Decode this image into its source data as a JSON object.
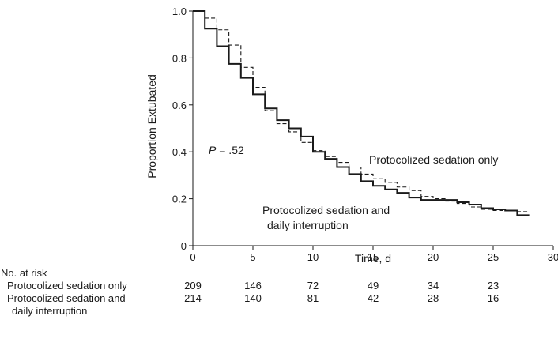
{
  "chart_data": {
    "type": "line",
    "step": true,
    "xlabel": "Time, d",
    "ylabel": "Proportion Extubated",
    "xlim": [
      0,
      30
    ],
    "ylim": [
      0,
      1.0
    ],
    "xticks": [
      "0",
      "5",
      "10",
      "15",
      "20",
      "25",
      "30"
    ],
    "yticks": [
      "0",
      "0.2",
      "0.4",
      "0.6",
      "0.8",
      "1.0"
    ],
    "annotation_p": {
      "italic": "P",
      "text": " = .52"
    },
    "series": [
      {
        "name": "Protocolized sedation only",
        "line_style": "dashed",
        "x": [
          0,
          1,
          2,
          3,
          4,
          5,
          6,
          7,
          8,
          9,
          10,
          11,
          12,
          13,
          14,
          15,
          16,
          17,
          18,
          19,
          20,
          21,
          22,
          23,
          24,
          25,
          26,
          27,
          28
        ],
        "y": [
          1.0,
          0.97,
          0.92,
          0.855,
          0.76,
          0.675,
          0.575,
          0.52,
          0.485,
          0.44,
          0.405,
          0.38,
          0.355,
          0.335,
          0.305,
          0.285,
          0.27,
          0.25,
          0.235,
          0.21,
          0.2,
          0.19,
          0.18,
          0.165,
          0.155,
          0.15,
          0.15,
          0.145,
          0.145
        ]
      },
      {
        "name": "Protocolized sedation and daily interruption",
        "line_style": "solid",
        "x": [
          0,
          1,
          2,
          3,
          4,
          5,
          6,
          7,
          8,
          9,
          10,
          11,
          12,
          13,
          14,
          15,
          16,
          17,
          18,
          19,
          20,
          21,
          22,
          23,
          24,
          25,
          26,
          27,
          28
        ],
        "y": [
          1.0,
          0.925,
          0.85,
          0.775,
          0.715,
          0.645,
          0.585,
          0.535,
          0.5,
          0.465,
          0.4,
          0.37,
          0.335,
          0.305,
          0.275,
          0.255,
          0.24,
          0.225,
          0.205,
          0.195,
          0.195,
          0.195,
          0.185,
          0.175,
          0.16,
          0.155,
          0.15,
          0.13,
          0.13
        ]
      }
    ],
    "series_labels": {
      "sedation_only": "Protocolized sedation only",
      "interruption_line1": "Protocolized sedation and",
      "interruption_line2": "daily interruption"
    }
  },
  "risk_table": {
    "heading": "No. at risk",
    "times": [
      0,
      5,
      10,
      15,
      20,
      25
    ],
    "rows": [
      {
        "label_line1": "Protocolized sedation only",
        "label_line2": "",
        "values": [
          "209",
          "146",
          "72",
          "49",
          "34",
          "23"
        ]
      },
      {
        "label_line1": "Protocolized sedation and",
        "label_line2": "daily interruption",
        "values": [
          "214",
          "140",
          "81",
          "42",
          "28",
          "16"
        ]
      }
    ]
  }
}
